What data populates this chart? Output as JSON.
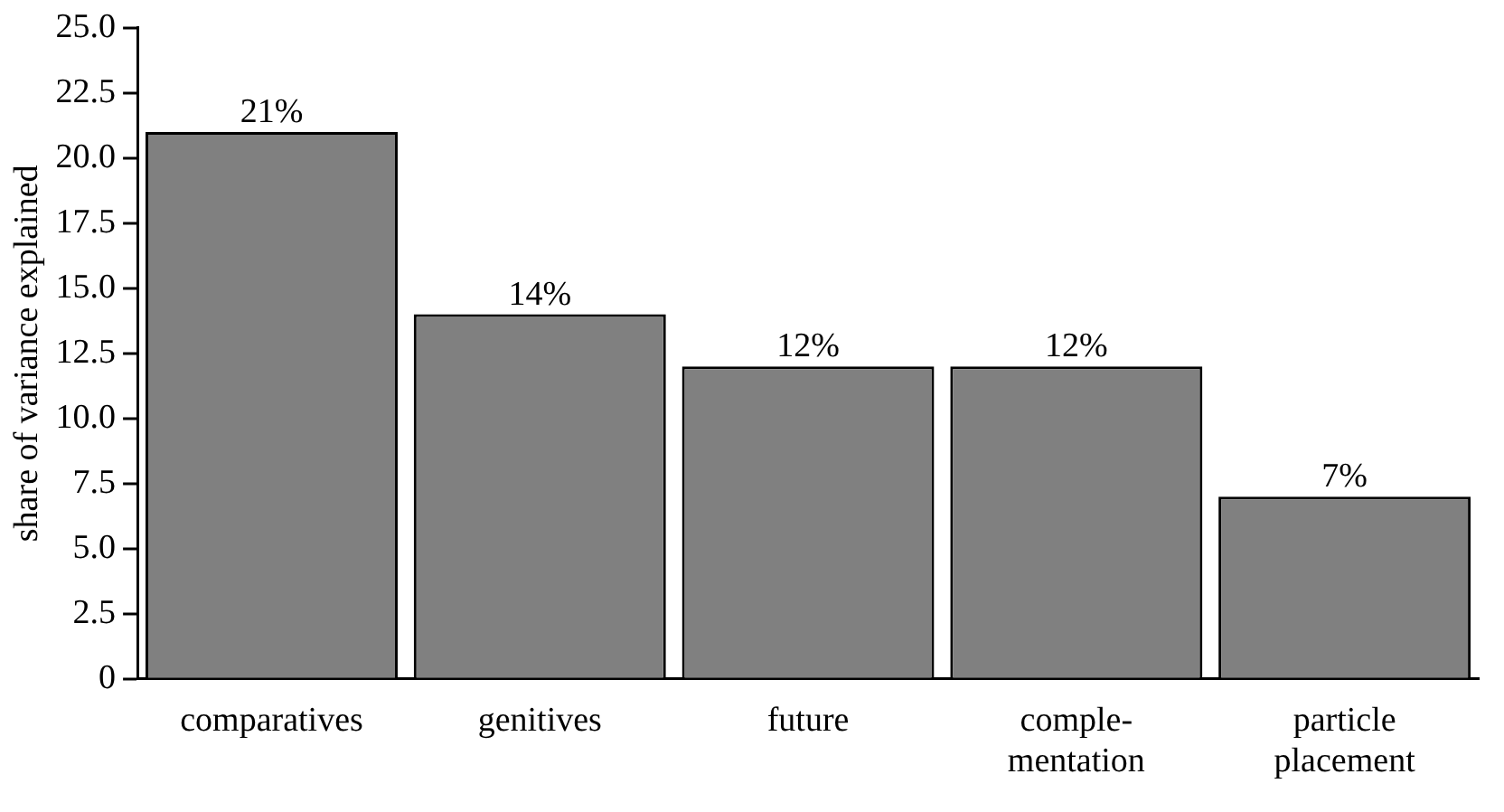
{
  "chart_data": {
    "type": "bar",
    "ylabel": "share of variance explained",
    "categories": [
      "comparatives",
      "genitives",
      "future",
      "comple-\nmentation",
      "particle\nplacement"
    ],
    "values": [
      21,
      14,
      12,
      12,
      7
    ],
    "value_labels": [
      "21%",
      "14%",
      "12%",
      "12%",
      "7%"
    ],
    "color": "#808080",
    "ylim": [
      0,
      25
    ],
    "yticks": [
      0,
      2.5,
      {
        "value": 5,
        "label": "5.0"
      },
      7.5,
      {
        "value": 10,
        "label": "10.0"
      },
      12.5,
      {
        "value": 15,
        "label": "15.0"
      },
      17.5,
      {
        "value": 20,
        "label": "20.0"
      },
      22.5,
      {
        "value": 25,
        "label": "25.0"
      }
    ],
    "grid": false,
    "legend": false
  }
}
